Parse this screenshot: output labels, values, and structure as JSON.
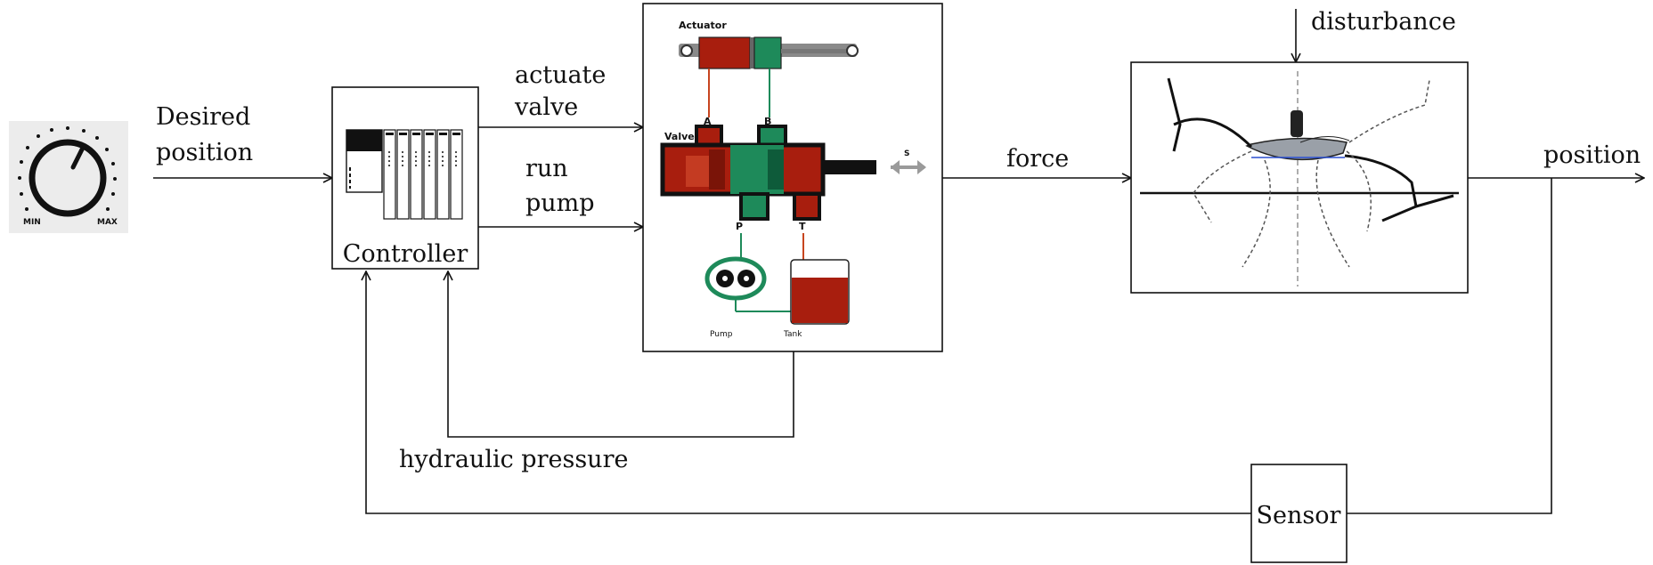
{
  "knob": {
    "min_label": "MIN",
    "max_label": "MAX"
  },
  "labels": {
    "desired_position": [
      "Desired",
      "position"
    ],
    "actuate_valve": [
      "actuate",
      "valve"
    ],
    "run_pump": [
      "run",
      "pump"
    ],
    "force": "force",
    "position": "position",
    "disturbance": "disturbance",
    "hydraulic_pressure": "hydraulic pressure"
  },
  "controller": {
    "label": "Controller"
  },
  "sensor": {
    "label": "Sensor"
  },
  "hydraulic": {
    "actuator": "Actuator",
    "valve": "Valve",
    "port_a": "A",
    "port_b": "B",
    "port_p": "P",
    "port_t": "T",
    "pump": "Pump",
    "tank": "Tank",
    "s_marker": "S"
  },
  "colors": {
    "oil_red": "#a81e0e",
    "oil_green": "#1e8a5a",
    "line": "#111111",
    "grey": "#9a9a9a"
  }
}
